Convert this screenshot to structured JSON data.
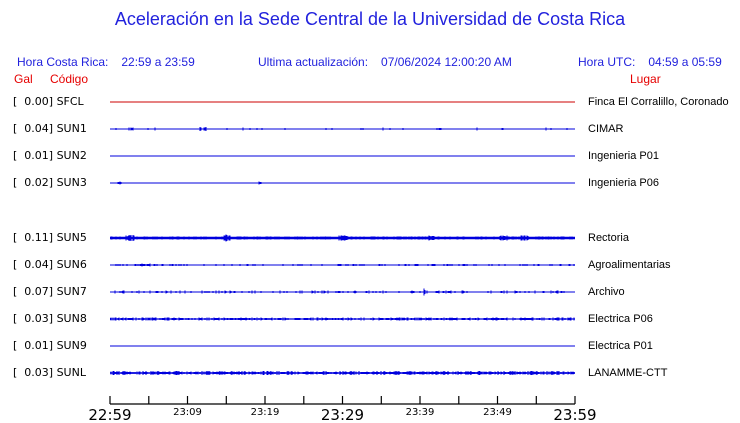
{
  "title": "Aceleración en la Sede Central de la Universidad de Costa Rica",
  "header": {
    "local_label": "Hora Costa Rica:",
    "local_value": "22:59 a 23:59",
    "update_label": "Ultima actualización:",
    "update_value": "07/06/2024 12:00:20 AM",
    "utc_label": "Hora UTC:",
    "utc_value": "04:59 a 05:59"
  },
  "columns": {
    "gal": "Gal",
    "code": "Código",
    "place": "Lugar"
  },
  "colors": {
    "header_blue": "#2222dd",
    "label_red": "#e60000",
    "trace_blue": "#0000dd",
    "trace_red": "#cc0000",
    "axis_black": "#000000"
  },
  "chart_data": {
    "type": "line",
    "title": "Aceleración en la Sede Central de la Universidad de Costa Rica",
    "x_range": [
      "22:59",
      "23:59"
    ],
    "x_tick_interval_minutes": 5,
    "x_labels": [
      {
        "text": "22:59",
        "big": true
      },
      {
        "text": "23:09",
        "big": false
      },
      {
        "text": "23:19",
        "big": false
      },
      {
        "text": "23:29",
        "big": true
      },
      {
        "text": "23:39",
        "big": false
      },
      {
        "text": "23:49",
        "big": false
      },
      {
        "text": "23:59",
        "big": true
      }
    ],
    "stations": [
      {
        "gal": "0.00",
        "code": "SFCL",
        "place": "Finca El Corralillo, Coronado",
        "color": "red",
        "noise": {
          "density": 0.012,
          "amp": 0.4,
          "base": 1.1,
          "bursts": []
        }
      },
      {
        "gal": "0.04",
        "code": "SUN1",
        "place": "CIMAR",
        "color": "blue",
        "noise": {
          "density": 0.05,
          "amp": 1.1,
          "base": 1.1,
          "bursts": [
            {
              "x": 21,
              "w": 2,
              "amp": 1.7
            },
            {
              "x": 93,
              "w": 3,
              "amp": 2.3
            },
            {
              "x": 330,
              "w": 2,
              "amp": 1.7
            }
          ]
        }
      },
      {
        "gal": "0.01",
        "code": "SUN2",
        "place": "Ingenieria P01",
        "color": "blue",
        "noise": {
          "density": 0.008,
          "amp": 0.5,
          "base": 1.1,
          "bursts": []
        }
      },
      {
        "gal": "0.02",
        "code": "SUN3",
        "place": "Ingenieria P06",
        "color": "blue",
        "noise": {
          "density": 0.015,
          "amp": 1.0,
          "base": 1.1,
          "bursts": [
            {
              "x": 10,
              "w": 2,
              "amp": 1.7
            },
            {
              "x": 150,
              "w": 1,
              "amp": 1.5
            }
          ]
        }
      },
      {
        "gal": "0.11",
        "code": "SUN5",
        "place": "Rectoria",
        "color": "blue",
        "noise": {
          "density": 0.9,
          "amp": 1.4,
          "base": 2.6,
          "bursts": [
            {
              "x": 20,
              "w": 4,
              "amp": 3.2
            },
            {
              "x": 117,
              "w": 3,
              "amp": 3.9
            },
            {
              "x": 233,
              "w": 4,
              "amp": 2.6
            },
            {
              "x": 322,
              "w": 3,
              "amp": 2.4
            },
            {
              "x": 393,
              "w": 4,
              "amp": 3.2
            },
            {
              "x": 415,
              "w": 4,
              "amp": 3.0
            }
          ]
        }
      },
      {
        "gal": "0.04",
        "code": "SUN6",
        "place": "Agroalimentarias",
        "color": "blue",
        "noise": {
          "density": 0.4,
          "amp": 1.0,
          "base": 1,
          "bursts": [
            {
              "x": 35,
              "w": 5,
              "amp": 1.5
            }
          ]
        }
      },
      {
        "gal": "0.07",
        "code": "SUN7",
        "place": "Archivo",
        "color": "blue",
        "noise": {
          "density": 0.4,
          "amp": 1.2,
          "base": 1,
          "bursts": [
            {
              "x": 315,
              "w": 1,
              "amp": 4.0
            }
          ]
        }
      },
      {
        "gal": "0.03",
        "code": "SUN8",
        "place": "Electrica P06",
        "color": "blue",
        "noise": {
          "density": 0.85,
          "amp": 1.2,
          "base": 1.2,
          "bursts": []
        }
      },
      {
        "gal": "0.01",
        "code": "SUN9",
        "place": "Electrica P01",
        "color": "blue",
        "noise": {
          "density": 0.008,
          "amp": 0.4,
          "base": 1.1,
          "bursts": []
        }
      },
      {
        "gal": "0.03",
        "code": "SUNL",
        "place": "LANAMME-CTT",
        "color": "blue",
        "noise": {
          "density": 0.88,
          "amp": 1.6,
          "base": 1.4,
          "bursts": []
        }
      }
    ]
  }
}
